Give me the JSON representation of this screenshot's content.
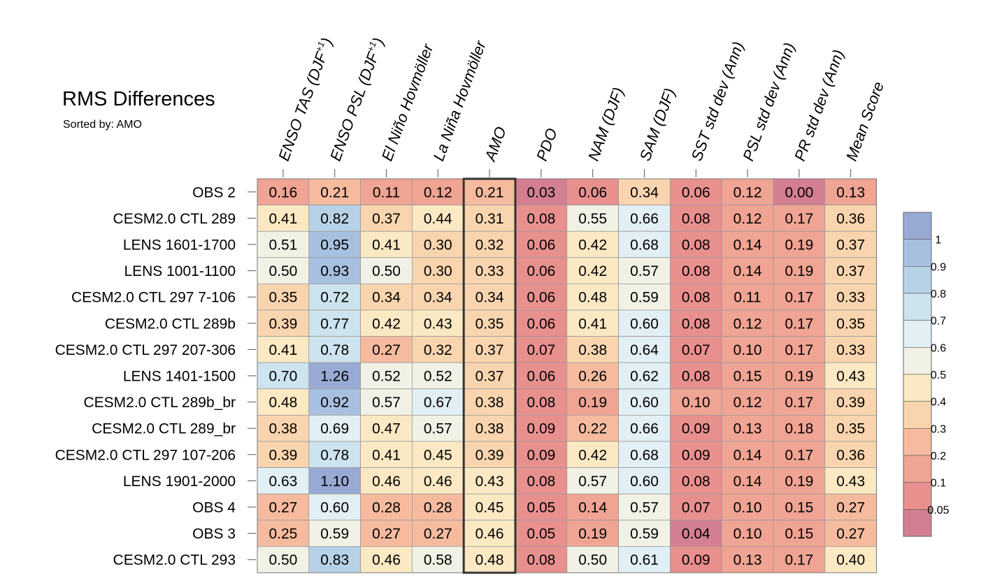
{
  "title": "RMS Differences",
  "subtitle": "Sorted by: AMO",
  "chart_data": {
    "type": "heatmap",
    "title": "RMS Differences",
    "subtitle": "Sorted by: AMO",
    "highlighted_column": "AMO",
    "columns": [
      {
        "text": "ENSO TAS (DJF",
        "sup": "+1",
        "tail": ")"
      },
      {
        "text": "ENSO PSL (DJF",
        "sup": "+1",
        "tail": ")"
      },
      {
        "text": "El Niño Hovmöller",
        "sup": "",
        "tail": ""
      },
      {
        "text": "La Niña Hovmöller",
        "sup": "",
        "tail": ""
      },
      {
        "text": "AMO",
        "sup": "",
        "tail": ""
      },
      {
        "text": "PDO",
        "sup": "",
        "tail": ""
      },
      {
        "text": "NAM (DJF)",
        "sup": "",
        "tail": ""
      },
      {
        "text": "SAM (DJF)",
        "sup": "",
        "tail": ""
      },
      {
        "text": "SST std dev (Ann)",
        "sup": "",
        "tail": ""
      },
      {
        "text": "PSL std dev (Ann)",
        "sup": "",
        "tail": ""
      },
      {
        "text": "PR std dev (Ann)",
        "sup": "",
        "tail": ""
      },
      {
        "text": "Mean Score",
        "sup": "",
        "tail": ""
      }
    ],
    "rows": [
      {
        "label": "OBS 2",
        "values": [
          "0.16",
          "0.21",
          "0.11",
          "0.12",
          "0.21",
          "0.03",
          "0.06",
          "0.34",
          "0.06",
          "0.12",
          "0.00",
          "0.13"
        ]
      },
      {
        "label": "CESM2.0 CTL 289",
        "values": [
          "0.41",
          "0.82",
          "0.37",
          "0.44",
          "0.31",
          "0.08",
          "0.55",
          "0.66",
          "0.08",
          "0.12",
          "0.17",
          "0.36"
        ]
      },
      {
        "label": "LENS 1601-1700",
        "values": [
          "0.51",
          "0.95",
          "0.41",
          "0.30",
          "0.32",
          "0.06",
          "0.42",
          "0.68",
          "0.08",
          "0.14",
          "0.19",
          "0.37"
        ]
      },
      {
        "label": "LENS 1001-1100",
        "values": [
          "0.50",
          "0.93",
          "0.50",
          "0.30",
          "0.33",
          "0.06",
          "0.42",
          "0.57",
          "0.08",
          "0.14",
          "0.19",
          "0.37"
        ]
      },
      {
        "label": "CESM2.0 CTL 297 7-106",
        "values": [
          "0.35",
          "0.72",
          "0.34",
          "0.34",
          "0.34",
          "0.06",
          "0.48",
          "0.59",
          "0.08",
          "0.11",
          "0.17",
          "0.33"
        ]
      },
      {
        "label": "CESM2.0 CTL 289b",
        "values": [
          "0.39",
          "0.77",
          "0.42",
          "0.43",
          "0.35",
          "0.06",
          "0.41",
          "0.60",
          "0.08",
          "0.12",
          "0.17",
          "0.35"
        ]
      },
      {
        "label": "CESM2.0 CTL 297 207-306",
        "values": [
          "0.41",
          "0.78",
          "0.27",
          "0.32",
          "0.37",
          "0.07",
          "0.38",
          "0.64",
          "0.07",
          "0.10",
          "0.17",
          "0.33"
        ]
      },
      {
        "label": "LENS 1401-1500",
        "values": [
          "0.70",
          "1.26",
          "0.52",
          "0.52",
          "0.37",
          "0.06",
          "0.26",
          "0.62",
          "0.08",
          "0.15",
          "0.19",
          "0.43"
        ]
      },
      {
        "label": "CESM2.0 CTL 289b_br",
        "values": [
          "0.48",
          "0.92",
          "0.57",
          "0.67",
          "0.38",
          "0.08",
          "0.19",
          "0.60",
          "0.10",
          "0.12",
          "0.17",
          "0.39"
        ]
      },
      {
        "label": "CESM2.0 CTL 289_br",
        "values": [
          "0.38",
          "0.69",
          "0.47",
          "0.57",
          "0.38",
          "0.09",
          "0.22",
          "0.66",
          "0.09",
          "0.13",
          "0.18",
          "0.35"
        ]
      },
      {
        "label": "CESM2.0 CTL 297 107-206",
        "values": [
          "0.39",
          "0.78",
          "0.41",
          "0.45",
          "0.39",
          "0.09",
          "0.42",
          "0.68",
          "0.09",
          "0.14",
          "0.17",
          "0.36"
        ]
      },
      {
        "label": "LENS 1901-2000",
        "values": [
          "0.63",
          "1.10",
          "0.46",
          "0.46",
          "0.43",
          "0.08",
          "0.57",
          "0.60",
          "0.08",
          "0.14",
          "0.19",
          "0.43"
        ]
      },
      {
        "label": "OBS 4",
        "values": [
          "0.27",
          "0.60",
          "0.28",
          "0.28",
          "0.45",
          "0.05",
          "0.14",
          "0.57",
          "0.07",
          "0.10",
          "0.15",
          "0.27"
        ]
      },
      {
        "label": "OBS 3",
        "values": [
          "0.25",
          "0.59",
          "0.27",
          "0.27",
          "0.46",
          "0.05",
          "0.19",
          "0.59",
          "0.04",
          "0.10",
          "0.15",
          "0.27"
        ]
      },
      {
        "label": "CESM2.0 CTL 293",
        "values": [
          "0.50",
          "0.83",
          "0.46",
          "0.58",
          "0.48",
          "0.08",
          "0.50",
          "0.61",
          "0.09",
          "0.13",
          "0.17",
          "0.40"
        ]
      }
    ],
    "colorbar": {
      "levels": [
        "0.05",
        "0.1",
        "0.2",
        "0.3",
        "0.4",
        "0.5",
        "0.6",
        "0.7",
        "0.8",
        "0.9",
        "1"
      ],
      "thresholds": [
        0.05,
        0.1,
        0.2,
        0.3,
        0.4,
        0.5,
        0.6,
        0.7,
        0.8,
        0.9,
        1.0
      ],
      "colors": [
        "#d37f91",
        "#e8908e",
        "#f0a493",
        "#f6bb9f",
        "#f9d5af",
        "#fbe9c3",
        "#f1f1e5",
        "#e2eff4",
        "#cde3ee",
        "#b7d1e6",
        "#a8c0e0",
        "#98aad3"
      ]
    }
  }
}
